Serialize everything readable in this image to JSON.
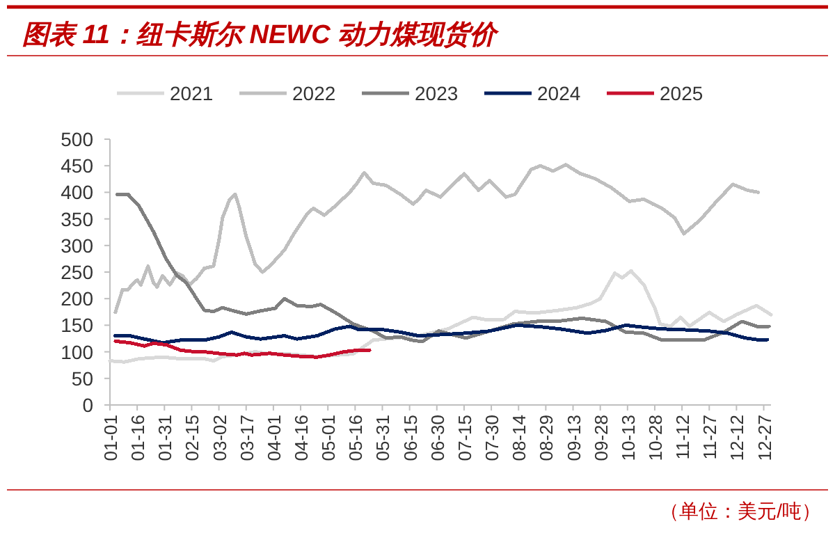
{
  "chart_data": {
    "type": "line",
    "title": "图表 11：纽卡斯尔 NEWC 动力煤现货价",
    "legend": "top",
    "line_style": "solid",
    "grid": false,
    "xlim": [
      "--01-01",
      "--12-31"
    ],
    "ylim": [
      0,
      500
    ],
    "yticks": [
      0,
      50,
      100,
      150,
      200,
      250,
      300,
      350,
      400,
      450,
      500
    ],
    "xticks": [
      {
        "value": "--01-01",
        "label": "01-01"
      },
      {
        "value": "--01-16",
        "label": "01-16"
      },
      {
        "value": "--01-31",
        "label": "01-31"
      },
      {
        "value": "--02-15",
        "label": "02-15"
      },
      {
        "value": "--03-02",
        "label": "03-02"
      },
      {
        "value": "--03-17",
        "label": "03-17"
      },
      {
        "value": "--04-01",
        "label": "04-01"
      },
      {
        "value": "--04-16",
        "label": "04-16"
      },
      {
        "value": "--05-01",
        "label": "05-01"
      },
      {
        "value": "--05-16",
        "label": "05-16"
      },
      {
        "value": "--05-31",
        "label": "05-31"
      },
      {
        "value": "--06-15",
        "label": "06-15"
      },
      {
        "value": "--06-30",
        "label": "06-30"
      },
      {
        "value": "--07-15",
        "label": "07-15"
      },
      {
        "value": "--07-30",
        "label": "07-30"
      },
      {
        "value": "--08-14",
        "label": "08-14"
      },
      {
        "value": "--08-29",
        "label": "08-29"
      },
      {
        "value": "--09-13",
        "label": "09-13"
      },
      {
        "value": "--09-28",
        "label": "09-28"
      },
      {
        "value": "--10-13",
        "label": "10-13"
      },
      {
        "value": "--10-28",
        "label": "10-28"
      },
      {
        "value": "--11-12",
        "label": "11-12"
      },
      {
        "value": "--11-27",
        "label": "11-27"
      },
      {
        "value": "--12-12",
        "label": "12-12"
      },
      {
        "value": "--12-27",
        "label": "12-27"
      }
    ],
    "annotations": [
      "（单位：美元/吨）"
    ],
    "series": [
      {
        "name": "2021",
        "color": "#d9d9d9",
        "x": [
          "--01-01",
          "--01-09",
          "--01-17",
          "--01-30",
          "--02-09",
          "--02-22",
          "--02-27",
          "--03-04",
          "--03-09",
          "--03-22",
          "--03-30",
          "--04-09",
          "--04-25",
          "--05-15",
          "--05-26",
          "--06-07",
          "--06-20",
          "--07-06",
          "--07-20",
          "--07-26",
          "--08-06",
          "--08-12",
          "--08-18",
          "--08-26",
          "--09-05",
          "--09-15",
          "--09-23",
          "--09-28",
          "--10-06",
          "--10-10",
          "--10-15",
          "--10-22",
          "--10-26",
          "--10-28",
          "--10-31",
          "--11-06",
          "--11-11",
          "--11-16",
          "--11-27",
          "--12-05",
          "--12-12",
          "--12-23",
          "--12-31"
        ],
        "values": [
          83,
          81,
          87,
          90,
          87,
          87,
          83,
          91,
          93,
          100,
          96,
          96,
          91,
          96,
          122,
          126,
          130,
          143,
          165,
          161,
          161,
          176,
          174,
          174,
          178,
          183,
          191,
          200,
          248,
          239,
          252,
          226,
          196,
          183,
          152,
          148,
          165,
          148,
          174,
          157,
          170,
          187,
          170
        ]
      },
      {
        "name": "2022",
        "color": "#bfbfbf",
        "x": [
          "--01-04",
          "--01-06",
          "--01-08",
          "--01-11",
          "--01-13",
          "--01-16",
          "--01-18",
          "--01-22",
          "--01-25",
          "--01-27",
          "--01-30",
          "--02-03",
          "--02-07",
          "--02-10",
          "--02-14",
          "--02-18",
          "--02-22",
          "--02-27",
          "--03-02",
          "--03-04",
          "--03-08",
          "--03-11",
          "--03-13",
          "--03-17",
          "--03-22",
          "--03-26",
          "--03-30",
          "--04-07",
          "--04-13",
          "--04-20",
          "--04-23",
          "--04-29",
          "--05-05",
          "--05-13",
          "--05-17",
          "--05-21",
          "--05-26",
          "--06-02",
          "--06-10",
          "--06-17",
          "--06-20",
          "--06-24",
          "--07-02",
          "--07-15",
          "--07-23",
          "--07-29",
          "--08-07",
          "--08-12",
          "--08-21",
          "--08-26",
          "--09-02",
          "--09-09",
          "--09-17",
          "--09-25",
          "--10-04",
          "--10-14",
          "--10-22",
          "--10-27",
          "--11-01",
          "--11-08",
          "--11-13",
          "--11-22",
          "--12-02",
          "--12-10",
          "--12-18",
          "--12-24"
        ],
        "values": [
          174,
          196,
          217,
          217,
          226,
          235,
          226,
          261,
          230,
          222,
          243,
          226,
          248,
          243,
          226,
          239,
          257,
          261,
          309,
          352,
          387,
          396,
          374,
          317,
          265,
          250,
          261,
          291,
          326,
          361,
          370,
          357,
          374,
          400,
          417,
          437,
          417,
          413,
          396,
          378,
          387,
          404,
          391,
          435,
          404,
          422,
          391,
          396,
          443,
          450,
          440,
          452,
          435,
          426,
          409,
          383,
          387,
          378,
          370,
          352,
          322,
          348,
          387,
          415,
          404,
          400
        ]
      },
      {
        "name": "2023",
        "color": "#7f7f7f",
        "x": [
          "--01-05",
          "--01-11",
          "--01-17",
          "--01-25",
          "--02-01",
          "--02-07",
          "--02-12",
          "--02-17",
          "--02-22",
          "--02-27",
          "--03-04",
          "--03-09",
          "--03-17",
          "--03-25",
          "--04-02",
          "--04-07",
          "--04-14",
          "--04-22",
          "--04-27",
          "--05-05",
          "--05-15",
          "--05-26",
          "--06-02",
          "--06-10",
          "--06-16",
          "--06-22",
          "--07-01",
          "--07-16",
          "--07-29",
          "--08-11",
          "--08-24",
          "--09-06",
          "--09-18",
          "--10-01",
          "--10-12",
          "--10-22",
          "--11-01",
          "--11-14",
          "--11-24",
          "--12-05",
          "--12-15",
          "--12-23",
          "--12-30"
        ],
        "values": [
          396,
          396,
          374,
          326,
          274,
          243,
          230,
          204,
          178,
          176,
          183,
          178,
          171,
          177,
          182,
          200,
          187,
          185,
          189,
          174,
          152,
          139,
          126,
          128,
          122,
          119,
          139,
          126,
          139,
          152,
          157,
          158,
          163,
          157,
          137,
          135,
          122,
          122,
          122,
          137,
          157,
          148,
          148
        ]
      },
      {
        "name": "2024",
        "color": "#002060",
        "x": [
          "--01-04",
          "--01-12",
          "--01-20",
          "--01-30",
          "--02-09",
          "--02-22",
          "--03-02",
          "--03-09",
          "--03-17",
          "--03-25",
          "--04-07",
          "--04-14",
          "--04-25",
          "--05-05",
          "--05-13",
          "--05-18",
          "--05-31",
          "--06-10",
          "--06-20",
          "--07-06",
          "--07-16",
          "--07-29",
          "--08-13",
          "--08-26",
          "--09-06",
          "--09-21",
          "--10-01",
          "--10-12",
          "--10-22",
          "--11-01",
          "--11-11",
          "--11-27",
          "--12-07",
          "--12-17",
          "--12-23",
          "--12-29"
        ],
        "values": [
          130,
          130,
          124,
          117,
          122,
          122,
          128,
          137,
          128,
          124,
          130,
          124,
          130,
          143,
          148,
          142,
          142,
          137,
          130,
          133,
          135,
          139,
          150,
          147,
          143,
          135,
          140,
          150,
          146,
          143,
          142,
          139,
          135,
          126,
          123,
          123
        ]
      },
      {
        "name": "2025",
        "color": "#c8102e",
        "x": [
          "--01-04",
          "--01-12",
          "--01-20",
          "--01-25",
          "--02-01",
          "--02-09",
          "--02-17",
          "--02-22",
          "--03-04",
          "--03-12",
          "--03-16",
          "--03-20",
          "--03-30",
          "--04-07",
          "--04-17",
          "--04-25",
          "--05-02",
          "--05-10",
          "--05-15",
          "--05-24"
        ],
        "values": [
          120,
          117,
          111,
          116,
          113,
          103,
          100,
          100,
          96,
          94,
          97,
          94,
          97,
          94,
          91,
          90,
          94,
          100,
          102,
          103
        ]
      }
    ]
  }
}
